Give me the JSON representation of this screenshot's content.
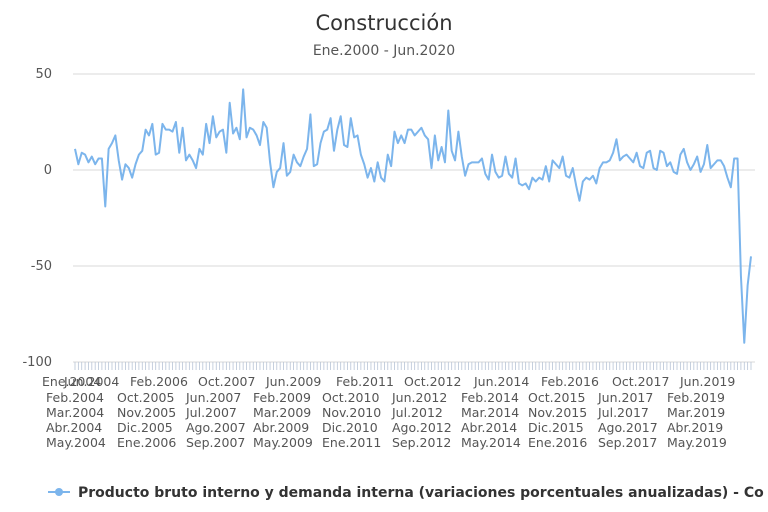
{
  "chart_data": {
    "type": "line",
    "title": "Construcción",
    "subtitle": "Ene.2000 - Jun.2020",
    "ylim": [
      -100,
      50
    ],
    "yticks": [
      "50",
      "0",
      "-50",
      "-100"
    ],
    "grid": true,
    "legend_position": "bottom",
    "color": "#7cb5ec",
    "series": [
      {
        "name": "Producto bruto interno y demanda interna (variaciones porcentuales anualizadas) - Co",
        "values": [
          11,
          3,
          9,
          8,
          4,
          7,
          3,
          6,
          6,
          -19,
          11,
          14,
          18,
          5,
          -5,
          3,
          1,
          -4,
          3,
          8,
          10,
          21,
          18,
          24,
          8,
          9,
          24,
          21,
          21,
          20,
          25,
          9,
          22,
          5,
          8,
          5,
          1,
          11,
          8,
          24,
          14,
          28,
          17,
          20,
          21,
          9,
          35,
          19,
          22,
          16,
          42,
          17,
          22,
          21,
          18,
          13,
          25,
          22,
          4,
          -9,
          -1,
          1,
          14,
          -3,
          -1,
          8,
          4,
          2,
          7,
          11,
          29,
          2,
          3,
          14,
          20,
          21,
          27,
          10,
          21,
          28,
          13,
          12,
          27,
          17,
          18,
          8,
          3,
          -4,
          1,
          -6,
          4,
          -4,
          -6,
          8,
          2,
          20,
          14,
          18,
          14,
          21,
          21,
          18,
          20,
          22,
          18,
          16,
          1,
          18,
          5,
          12,
          4,
          31,
          10,
          5,
          20,
          7,
          -3,
          3,
          4,
          4,
          4,
          6,
          -2,
          -5,
          8,
          -1,
          -4,
          -3,
          7,
          -2,
          -4,
          6,
          -7,
          -8,
          -7,
          -10,
          -4,
          -6,
          -4,
          -5,
          2,
          -6,
          5,
          3,
          1,
          7,
          -3,
          -4,
          1,
          -8,
          -16,
          -6,
          -4,
          -5,
          -3,
          -7,
          1,
          4,
          4,
          5,
          9,
          16,
          5,
          7,
          8,
          6,
          4,
          9,
          2,
          1,
          9,
          10,
          1,
          0,
          10,
          9,
          2,
          4,
          -1,
          -2,
          8,
          11,
          4,
          0,
          3,
          7,
          -1,
          3,
          13,
          1,
          3,
          5,
          5,
          2,
          -4,
          -9,
          6,
          6,
          -55,
          -90,
          -60,
          -45
        ]
      }
    ],
    "x_labels_rows": [
      [
        "Ene.2004",
        "Jun.2004",
        "Feb.2006",
        "Oct.2007",
        "Jun.2009",
        "Feb.2011",
        "Oct.2012",
        "Jun.2014",
        "Feb.2016",
        "Oct.2017",
        "Jun.2019"
      ],
      [
        "Feb.2004",
        "Oct.2005",
        "Jun.2007",
        "Feb.2009",
        "Oct.2010",
        "Jun.2012",
        "Feb.2014",
        "Oct.2015",
        "Jun.2017",
        "Feb.2019"
      ],
      [
        "Mar.2004",
        "Nov.2005",
        "Jul.2007",
        "Mar.2009",
        "Nov.2010",
        "Jul.2012",
        "Mar.2014",
        "Nov.2015",
        "Jul.2017",
        "Mar.2019"
      ],
      [
        "Abr.2004",
        "Dic.2005",
        "Ago.2007",
        "Abr.2009",
        "Dic.2010",
        "Ago.2012",
        "Abr.2014",
        "Dic.2015",
        "Ago.2017",
        "Abr.2019"
      ],
      [
        "May.2004",
        "Ene.2006",
        "Sep.2007",
        "May.2009",
        "Ene.2011",
        "Sep.2012",
        "May.2014",
        "Ene.2016",
        "Sep.2017",
        "May.2019"
      ]
    ]
  }
}
